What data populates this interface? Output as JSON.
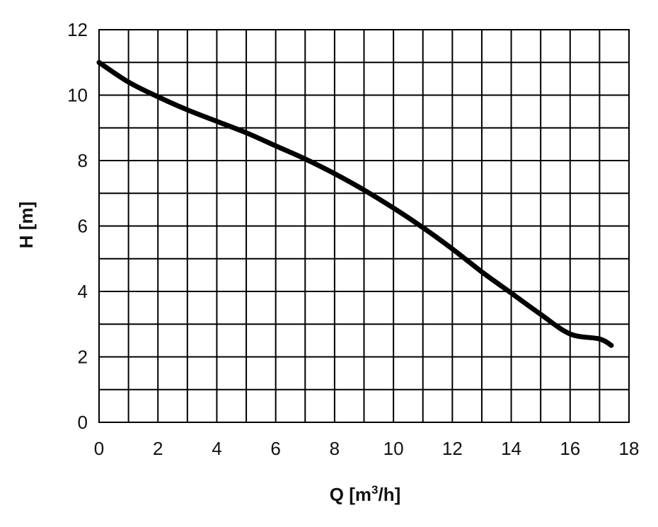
{
  "chart_data": {
    "type": "line",
    "xlabel": "Q [m",
    "xlabel_sup": "3",
    "xlabel_tail": "/h]",
    "ylabel": "H [m]",
    "xlim": [
      0,
      18
    ],
    "ylim": [
      0,
      12
    ],
    "x_ticks": [
      0,
      2,
      4,
      6,
      8,
      10,
      12,
      14,
      16,
      18
    ],
    "y_ticks": [
      0,
      2,
      4,
      6,
      8,
      10,
      12
    ],
    "x_grid_step": 1,
    "y_grid_step": 1,
    "grid": true,
    "series": [
      {
        "x": [
          0,
          1,
          2,
          3,
          4,
          5,
          6,
          7,
          8,
          9,
          10,
          11,
          12,
          13,
          14,
          15,
          16,
          17,
          17.4
        ],
        "y": [
          11.0,
          10.4,
          9.95,
          9.55,
          9.2,
          8.85,
          8.45,
          8.05,
          7.6,
          7.1,
          6.55,
          5.95,
          5.3,
          4.6,
          3.95,
          3.3,
          2.7,
          2.55,
          2.35
        ]
      }
    ],
    "line_color": "#000000"
  }
}
